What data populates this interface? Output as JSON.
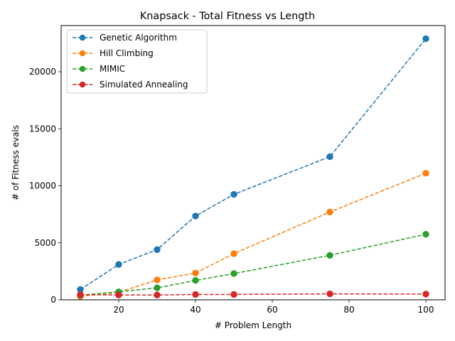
{
  "chart_data": {
    "type": "line",
    "title": "Knapsack - Total Fitness vs Length",
    "xlabel": "# Problem Length",
    "ylabel": "# of Fitness evals",
    "x": [
      10,
      20,
      30,
      40,
      50,
      75,
      100
    ],
    "xlim": [
      5,
      105
    ],
    "ylim": [
      0,
      24050
    ],
    "xticks": [
      20,
      40,
      60,
      80,
      100
    ],
    "yticks": [
      0,
      5000,
      10000,
      15000,
      20000
    ],
    "grid": false,
    "legend_position": "top-left",
    "line_style": "dashed",
    "marker": "circle",
    "series": [
      {
        "name": "Genetic Algorithm",
        "color": "#1f77b4",
        "values": [
          900,
          3100,
          4400,
          7350,
          9250,
          12550,
          22900
        ]
      },
      {
        "name": "Hill Climbing",
        "color": "#ff7f0e",
        "values": [
          300,
          650,
          1750,
          2350,
          4050,
          7700,
          11100
        ]
      },
      {
        "name": "MIMIC",
        "color": "#2ca02c",
        "values": [
          400,
          700,
          1050,
          1700,
          2300,
          3900,
          5750
        ]
      },
      {
        "name": "Simulated Annealing",
        "color": "#d62728",
        "values": [
          450,
          420,
          420,
          470,
          470,
          520,
          500
        ]
      }
    ]
  }
}
